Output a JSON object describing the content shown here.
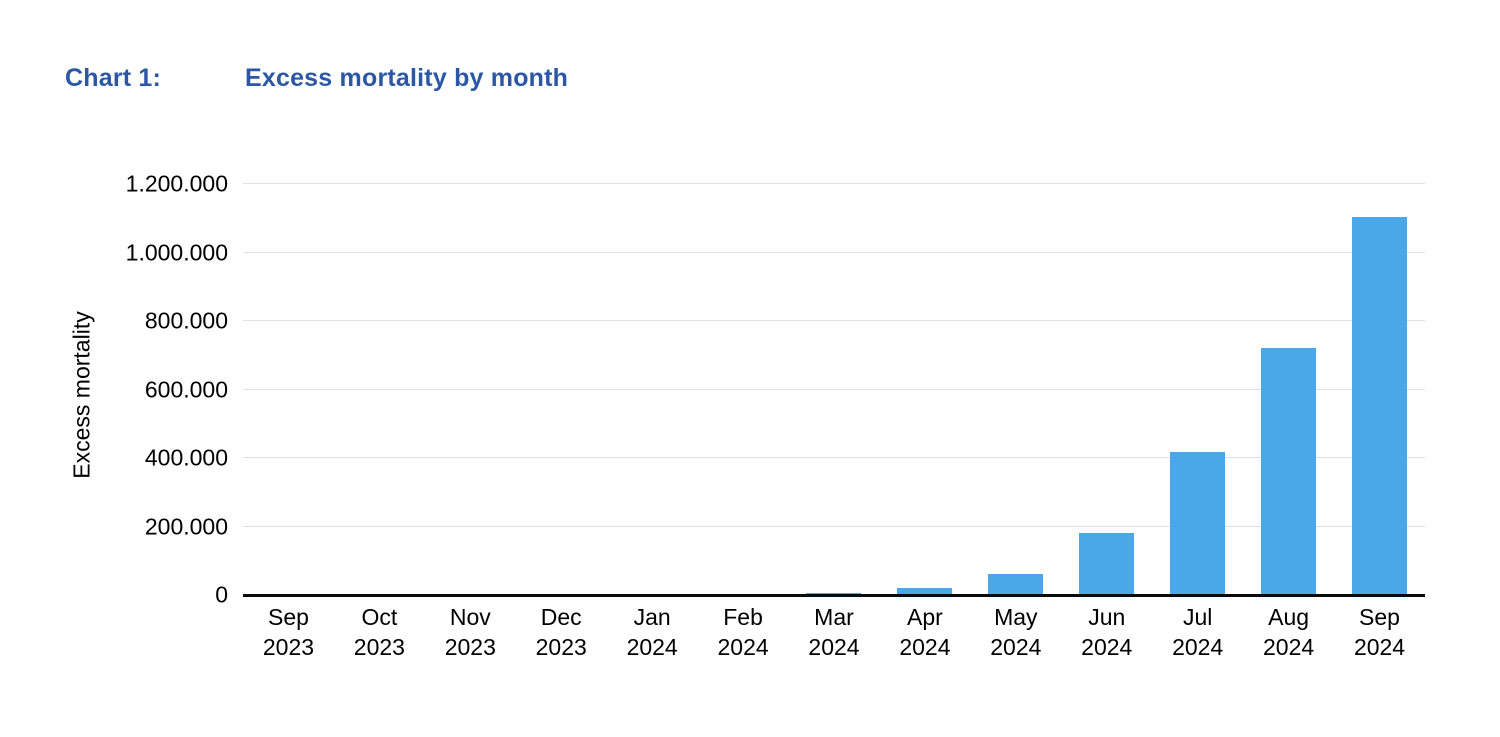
{
  "title": {
    "prefix": "Chart 1:",
    "text": "Excess mortality by month"
  },
  "colors": {
    "title": "#2B57A5",
    "bar": "#4AA8E8",
    "gridline": "#E1E1E1",
    "axis_line": "#0A0A0A",
    "tick_text": "#000000"
  },
  "chart_data": {
    "type": "bar",
    "title": "Excess mortality by month",
    "xlabel": "",
    "ylabel": "Excess mortality",
    "categories": [
      "Sep 2023",
      "Oct 2023",
      "Nov 2023",
      "Dec 2023",
      "Jan 2024",
      "Feb 2024",
      "Mar 2024",
      "Apr 2024",
      "May 2024",
      "Jun 2024",
      "Jul 2024",
      "Aug 2024",
      "Sep 2024"
    ],
    "values": [
      0,
      0,
      0,
      0,
      0,
      0,
      5000,
      20000,
      62000,
      180000,
      417000,
      722000,
      1105000
    ],
    "ylim": [
      0,
      1200000
    ],
    "ytick_interval": 200000,
    "ytick_labels_bottom_to_top": [
      "0",
      "200.000",
      "400.000",
      "600.000",
      "800.000",
      "1.000.000",
      "1.200.000"
    ],
    "grid": true,
    "legend": false
  }
}
